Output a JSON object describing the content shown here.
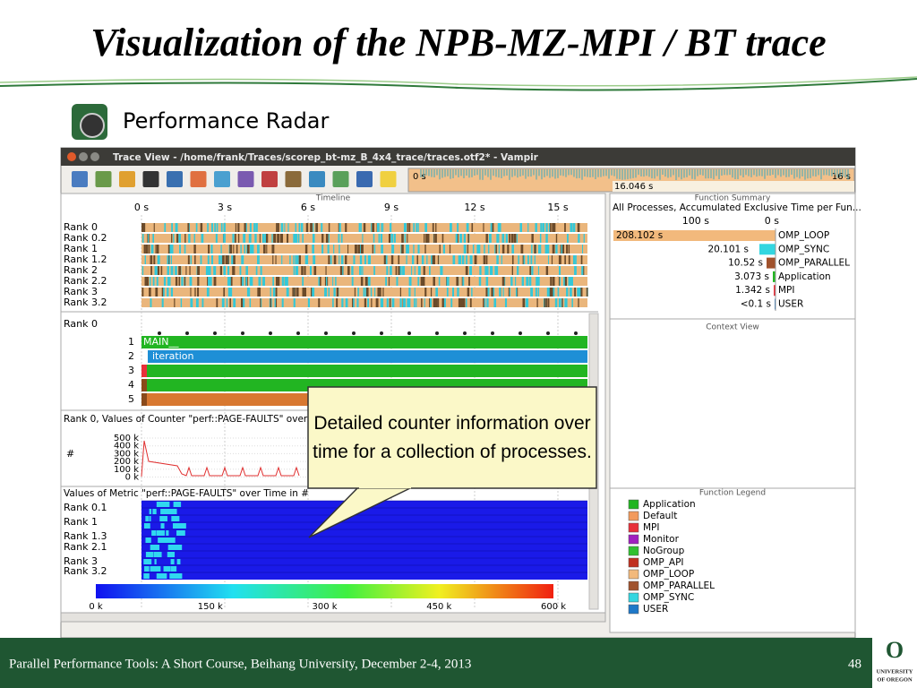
{
  "slide": {
    "title": "Visualization of the NPB-MZ-MPI / BT trace",
    "subtitle": "Performance Radar",
    "footer": "Parallel Performance Tools: A Short Course, Beihang University, December 2-4, 2013",
    "page": "48",
    "logo": {
      "mark": "O",
      "line1": "UNIVERSITY",
      "line2": "OF OREGON"
    }
  },
  "window": {
    "title": "Trace View - /home/frank/Traces/scorep_bt-mz_B_4x4_trace/traces.otf2* - Vampir"
  },
  "navigator": {
    "start": "0 s",
    "end": "16 s",
    "position": "16.046 s"
  },
  "timeline": {
    "header": "Timeline",
    "ticks": [
      "0 s",
      "3 s",
      "6 s",
      "9 s",
      "12 s",
      "15 s"
    ],
    "ranks": [
      "Rank 0",
      "Rank 0.2",
      "Rank 1",
      "Rank 1.2",
      "Rank 2",
      "Rank 2.2",
      "Rank 3",
      "Rank 3.2"
    ]
  },
  "process_timeline": {
    "rank": "Rank 0",
    "levels": [
      "1",
      "2",
      "3",
      "4",
      "5"
    ],
    "functions": [
      "MAIN__",
      "iteration"
    ]
  },
  "counter": {
    "title": "Rank 0, Values of Counter \"perf::PAGE-FAULTS\" over T",
    "unit": "#",
    "ticks": [
      "500 k",
      "400 k",
      "300 k",
      "200 k",
      "100 k",
      "0 k"
    ]
  },
  "metric": {
    "title": "Values of Metric \"perf::PAGE-FAULTS\" over Time in #",
    "ranks": [
      "Rank 0.1",
      "Rank 1",
      "Rank 1.3",
      "Rank 2.1",
      "Rank 3",
      "Rank 3.2"
    ],
    "scale": [
      "0 k",
      "150 k",
      "300 k",
      "450 k",
      "600 k"
    ]
  },
  "function_summary": {
    "header": "Function Summary",
    "subtitle": "All Processes, Accumulated Exclusive Time per Fun...",
    "axis": [
      "100 s",
      "0 s"
    ],
    "rows": [
      {
        "time": "208.102 s",
        "name": "OMP_LOOP",
        "color": "#f2b97c"
      },
      {
        "time": "20.101 s",
        "name": "OMP_SYNC",
        "color": "#33d6e0"
      },
      {
        "time": "10.52 s",
        "name": "OMP_PARALLEL",
        "color": "#a0522d"
      },
      {
        "time": "3.073 s",
        "name": "Application",
        "color": "#22b522"
      },
      {
        "time": "1.342 s",
        "name": "MPI",
        "color": "#e8303a"
      },
      {
        "time": "<0.1 s",
        "name": "USER",
        "color": "#1e78c8"
      }
    ]
  },
  "context_view": {
    "header": "Context View"
  },
  "function_legend": {
    "header": "Function Legend",
    "items": [
      {
        "name": "Application",
        "color": "#22b522"
      },
      {
        "name": "Default",
        "color": "#f29a5c"
      },
      {
        "name": "MPI",
        "color": "#e8303a"
      },
      {
        "name": "Monitor",
        "color": "#a020c0"
      },
      {
        "name": "NoGroup",
        "color": "#30c030"
      },
      {
        "name": "OMP_API",
        "color": "#c03020"
      },
      {
        "name": "OMP_LOOP",
        "color": "#f2b97c"
      },
      {
        "name": "OMP_PARALLEL",
        "color": "#a0522d"
      },
      {
        "name": "OMP_SYNC",
        "color": "#33d6e0"
      },
      {
        "name": "USER",
        "color": "#1e78c8"
      }
    ]
  },
  "callout": "Detailed counter information over time for a collection of processes."
}
